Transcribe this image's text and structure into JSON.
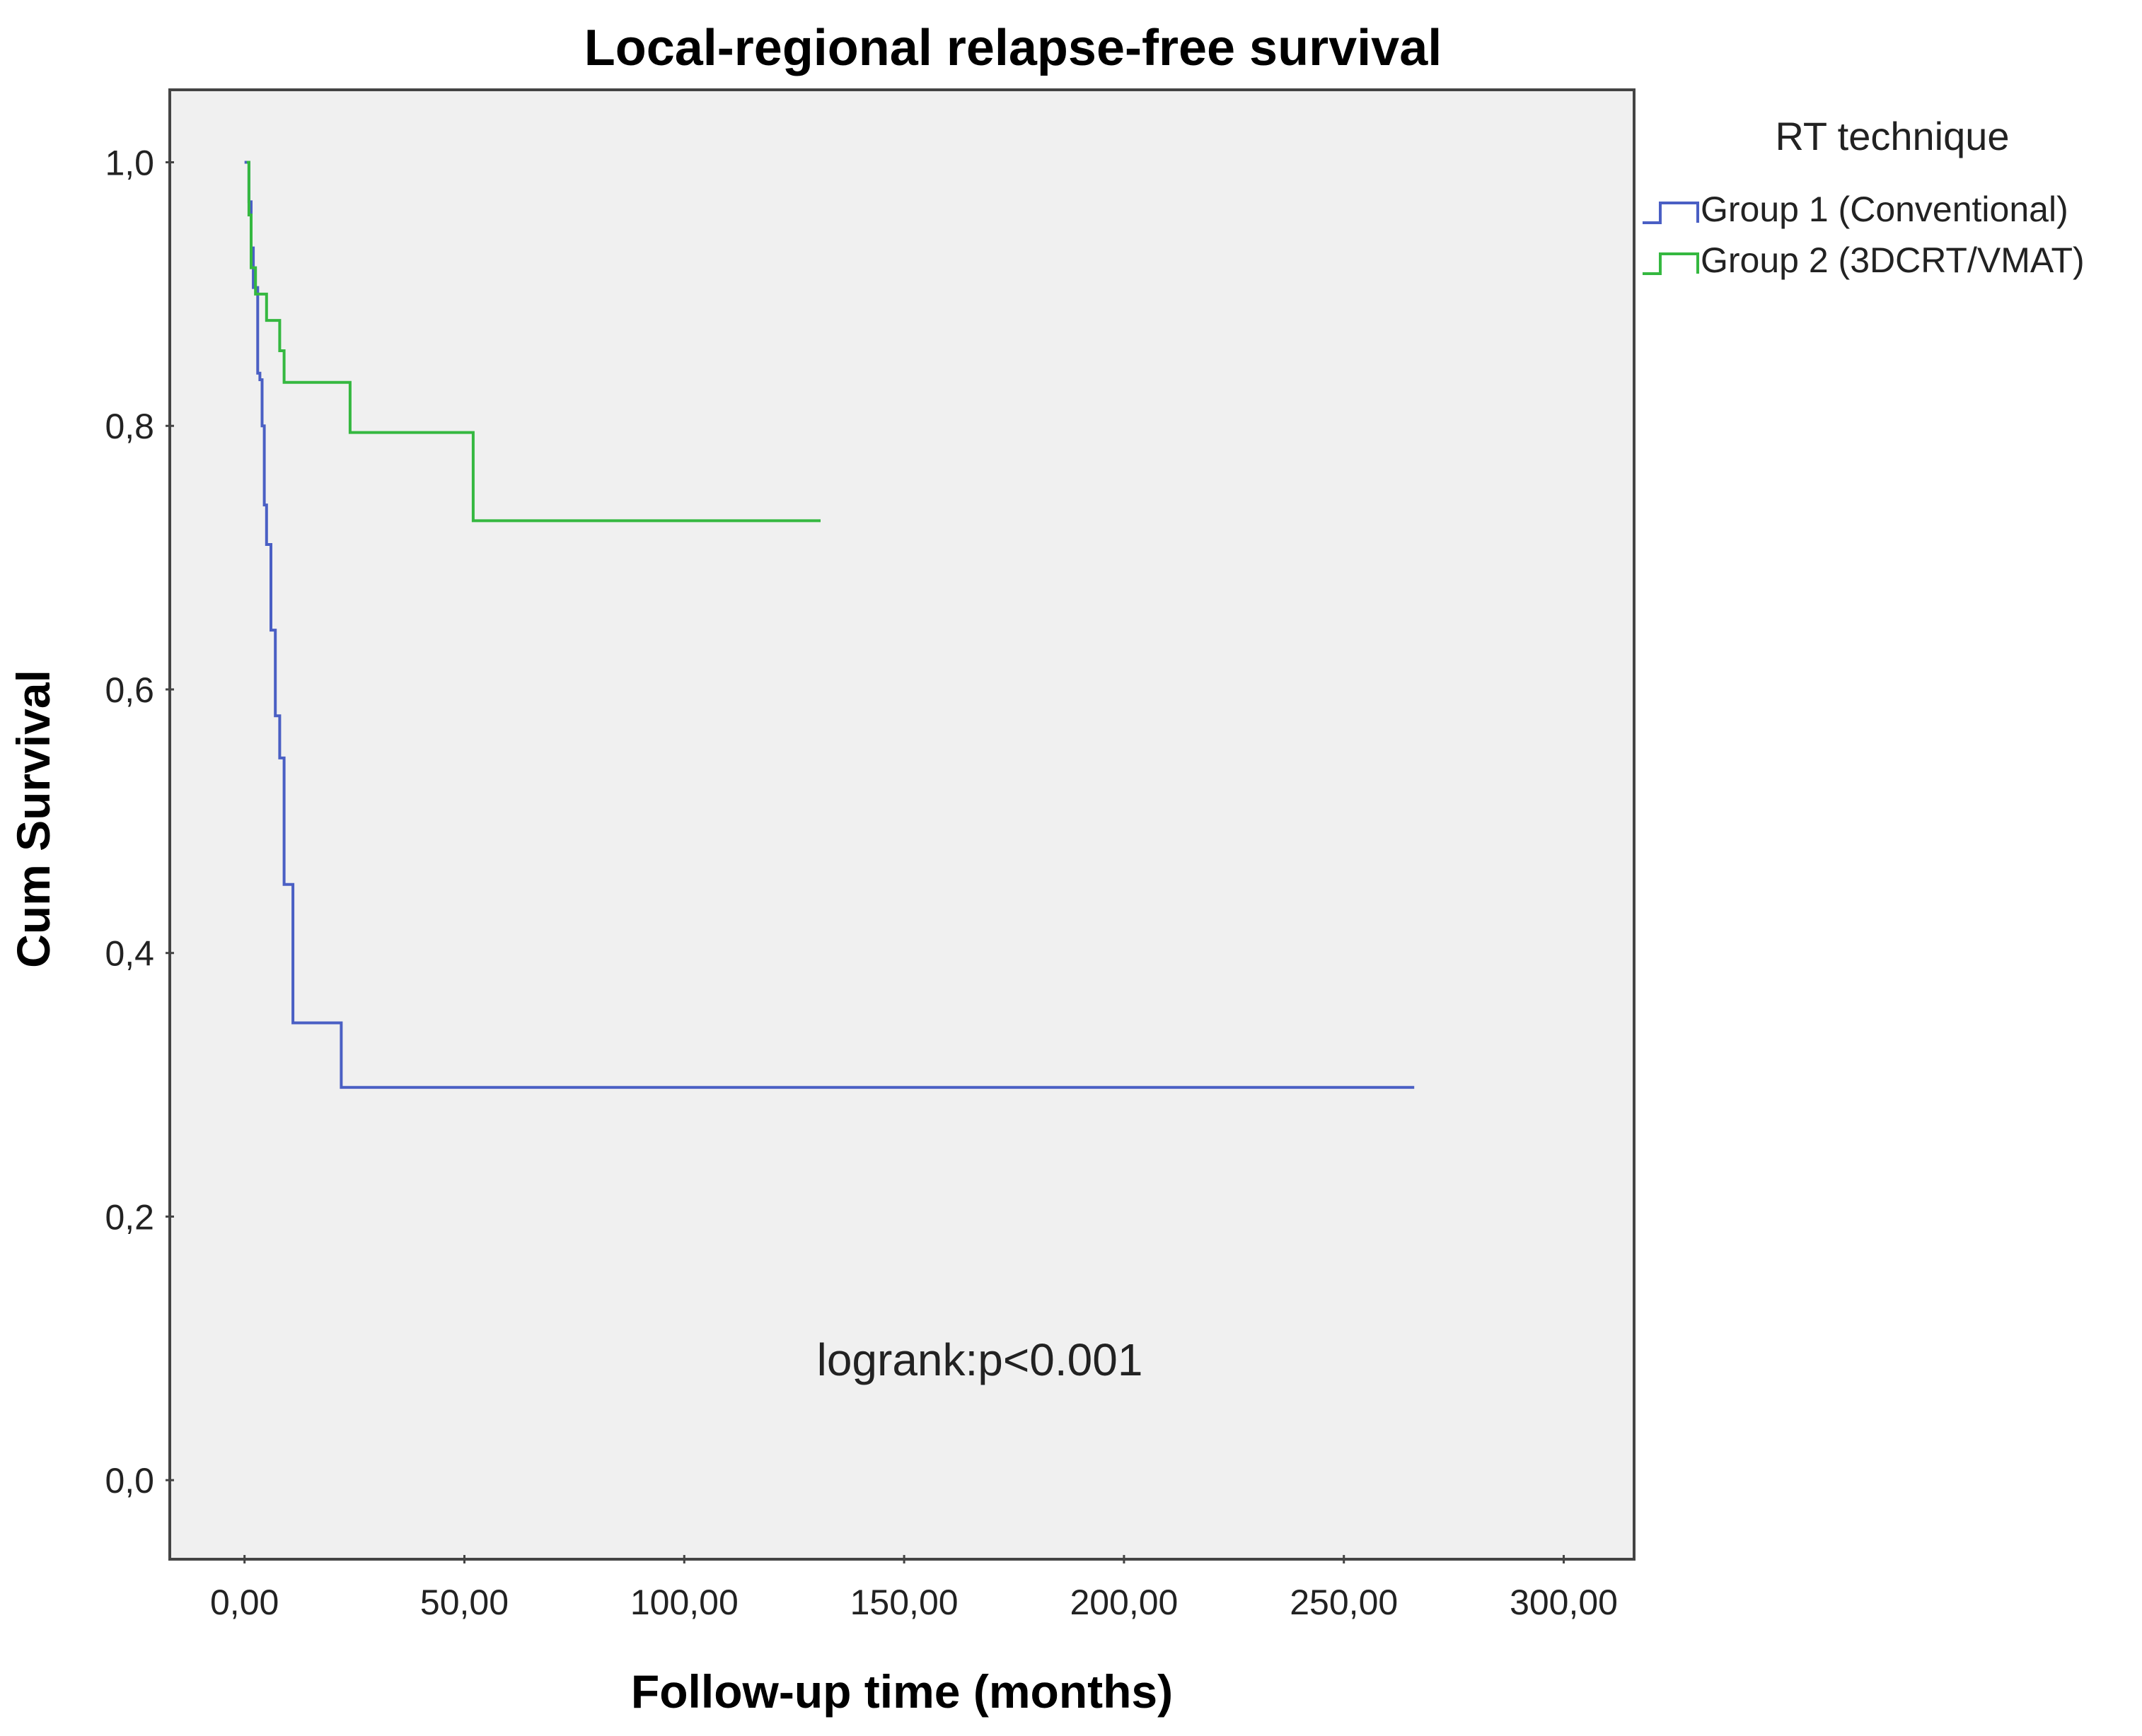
{
  "chart_data": {
    "type": "line",
    "step": true,
    "title": "Local-regional relapse-free survival",
    "xlabel": "Follow-up time (months)",
    "ylabel": "Cum Survival",
    "xlim": [
      -17,
      316
    ],
    "ylim": [
      -0.06,
      1.055
    ],
    "x_ticks": [
      0,
      50,
      100,
      150,
      200,
      250,
      300
    ],
    "x_tick_labels": [
      "0,00",
      "50,00",
      "100,00",
      "150,00",
      "200,00",
      "250,00",
      "300,00"
    ],
    "y_ticks": [
      0,
      0.2,
      0.4,
      0.6,
      0.8,
      1.0
    ],
    "y_tick_labels": [
      "0,0",
      "0,2",
      "0,4",
      "0,6",
      "0,8",
      "1,0"
    ],
    "grid": false,
    "legend": {
      "title": "RT technique",
      "placement": "right"
    },
    "annotation": "logrank:p<0.001",
    "series": [
      {
        "name": "Group 1 (Conventional)",
        "color": "#4a5fc4",
        "points": [
          [
            0,
            1.0
          ],
          [
            1,
            1.0
          ],
          [
            1,
            0.97
          ],
          [
            1.5,
            0.97
          ],
          [
            1.5,
            0.935
          ],
          [
            2,
            0.935
          ],
          [
            2,
            0.905
          ],
          [
            3,
            0.905
          ],
          [
            3,
            0.84
          ],
          [
            3.5,
            0.84
          ],
          [
            3.5,
            0.835
          ],
          [
            4,
            0.835
          ],
          [
            4,
            0.8
          ],
          [
            4.5,
            0.8
          ],
          [
            4.5,
            0.74
          ],
          [
            5,
            0.74
          ],
          [
            5,
            0.71
          ],
          [
            6,
            0.71
          ],
          [
            6,
            0.645
          ],
          [
            7,
            0.645
          ],
          [
            7,
            0.58
          ],
          [
            8,
            0.58
          ],
          [
            8,
            0.548
          ],
          [
            9,
            0.548
          ],
          [
            9,
            0.452
          ],
          [
            11,
            0.452
          ],
          [
            11,
            0.347
          ],
          [
            22,
            0.347
          ],
          [
            22,
            0.298
          ],
          [
            266,
            0.298
          ]
        ]
      },
      {
        "name": "Group 2 (3DCRT/VMAT)",
        "color": "#35b840",
        "points": [
          [
            0.5,
            1.0
          ],
          [
            1,
            1.0
          ],
          [
            1,
            0.96
          ],
          [
            1.5,
            0.96
          ],
          [
            1.5,
            0.92
          ],
          [
            2.5,
            0.92
          ],
          [
            2.5,
            0.9
          ],
          [
            5,
            0.9
          ],
          [
            5,
            0.88
          ],
          [
            8,
            0.88
          ],
          [
            8,
            0.857
          ],
          [
            9,
            0.857
          ],
          [
            9,
            0.833
          ],
          [
            24,
            0.833
          ],
          [
            24,
            0.795
          ],
          [
            52,
            0.795
          ],
          [
            52,
            0.728
          ],
          [
            131,
            0.728
          ]
        ]
      }
    ]
  }
}
